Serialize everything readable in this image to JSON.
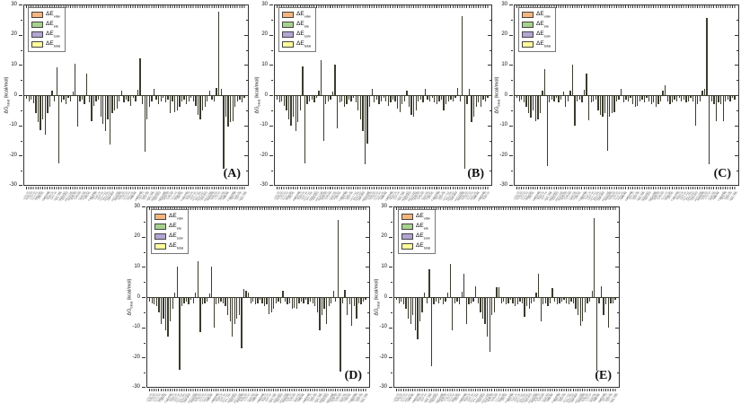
{
  "figure": {
    "background": "#ffffff",
    "bar_color": "#3b3b2e",
    "axis_color": "#333333",
    "description_visible_text_only": true
  },
  "legend": {
    "items": [
      {
        "pre": "ΔE",
        "sub": "vdw",
        "color": "#f5b57e"
      },
      {
        "pre": "ΔE",
        "sub": "ele",
        "color": "#a6d28e"
      },
      {
        "pre": "ΔE",
        "sub": "solv",
        "color": "#b3a5d3"
      },
      {
        "pre": "ΔE",
        "sub": "total",
        "color": "#ffff9c"
      }
    ]
  },
  "ylabel": {
    "pre": "ΔG",
    "sub": "bind",
    "post": " (kcal/mol)"
  },
  "xticks_note": "per-residue tick labels are present but illegible at source resolution",
  "xticks_sample": [
    "GLN-30",
    "ASP-32",
    "TYR-37",
    "LYS-40",
    "GLU-44",
    "ARG-65",
    "PHE-82",
    "HIS-41",
    "CYS-145",
    "MET-49",
    "LEU-27",
    "THR-26",
    "SER-46",
    "GLY-143",
    "VAL-186",
    "ASN-142",
    "TRP-207",
    "ILE-213",
    "PRO-168",
    "ALA-191"
  ],
  "chart_data": [
    {
      "type": "bar",
      "panel_label": "(A)",
      "ylabel": "ΔG_bind (kcal/mol)",
      "ylim": [
        -30,
        30
      ],
      "yticks": [
        30,
        20,
        10,
        0,
        -10,
        -20,
        -30
      ],
      "legend_entries": [
        "ΔE_vdw",
        "ΔE_ele",
        "ΔE_solv",
        "ΔE_total"
      ],
      "x": "protein residues (labels illegible)",
      "values": [
        -1.2,
        -2,
        -1.5,
        -2.6,
        -6,
        -9,
        -11.5,
        -8,
        -13,
        -6,
        -4,
        1.5,
        -2,
        9.2,
        -22.5,
        -2.5,
        -1.5,
        -3,
        -1,
        -2,
        1.2,
        10.5,
        -10.4,
        -2,
        -1.5,
        -3,
        7,
        -2.5,
        -8.7,
        -3.5,
        -2,
        -1.5,
        -7,
        -9.5,
        -12,
        -8,
        -16.3,
        -6,
        -5,
        -4.5,
        -2,
        1.5,
        -2.5,
        -1.5,
        -2,
        -3.5,
        -1,
        -2,
        1.8,
        12.2,
        -3,
        -18.6,
        -8,
        -4,
        -2,
        2,
        -1.5,
        -3,
        -2,
        -1,
        -2.5,
        -1.5,
        -6,
        -2,
        -5.5,
        -5,
        -4,
        -2,
        -1.5,
        -3,
        -2,
        -1,
        -2,
        -3.5,
        -6.5,
        -8,
        -5,
        -4,
        -2,
        1.5,
        -1.5,
        -2,
        2.5,
        27.5,
        2,
        -24.5,
        -7,
        -10.5,
        -9,
        -8.5,
        -4,
        -2,
        -1.5,
        -2.5,
        -1
      ]
    },
    {
      "type": "bar",
      "panel_label": "(B)",
      "ylabel": "ΔG_bind (kcal/mol)",
      "ylim": [
        -30,
        30
      ],
      "yticks": [
        30,
        20,
        10,
        0,
        -10,
        -20,
        -30
      ],
      "legend_entries": [
        "ΔE_vdw",
        "ΔE_ele",
        "ΔE_solv",
        "ΔE_total"
      ],
      "x": "protein residues (labels illegible)",
      "values": [
        -1.5,
        -2.5,
        -2,
        -3.5,
        -5,
        -8,
        -10,
        -7,
        -12,
        -9,
        -5,
        9.5,
        -22.5,
        -3,
        -2,
        -1.5,
        -2.5,
        -1,
        1.5,
        11.5,
        -15,
        -3,
        -2,
        -1.5,
        1.2,
        10,
        -11,
        -2.5,
        -2,
        -4,
        -3,
        -1.5,
        -2,
        -1,
        -2.5,
        -5,
        -8,
        -12,
        -23,
        -16,
        -4,
        2,
        -2.5,
        -1.5,
        -3,
        -2,
        -1,
        -2,
        -3.5,
        -2.5,
        -1.5,
        -2,
        -4.5,
        -5.5,
        -3,
        -2,
        1.5,
        -4,
        -6.5,
        -7,
        -5,
        -2,
        -1.5,
        -2.5,
        2,
        -1.5,
        -2,
        -1,
        -2.5,
        -3,
        -2,
        -1.5,
        -5,
        -3,
        -2,
        -1.5,
        -2,
        -1,
        2.5,
        -2,
        26,
        -24.3,
        -3,
        2,
        -9,
        -7,
        -4,
        -2.5,
        -4,
        -1.5,
        -2,
        -1
      ]
    },
    {
      "type": "bar",
      "panel_label": "(C)",
      "ylabel": "ΔG_bind (kcal/mol)",
      "ylim": [
        -30,
        30
      ],
      "yticks": [
        30,
        20,
        10,
        0,
        -10,
        -20,
        -30
      ],
      "legend_entries": [
        "ΔE_vdw",
        "ΔE_ele",
        "ΔE_solv",
        "ΔE_total"
      ],
      "x": "protein residues (labels illegible)",
      "values": [
        -1,
        -2,
        -1.5,
        -2.5,
        -4,
        -6,
        -7.5,
        -5,
        -8.5,
        -8,
        -6,
        1.5,
        8.5,
        -23.5,
        -2.5,
        -1.5,
        -2,
        -1,
        -2.5,
        -1.5,
        1.2,
        -4,
        -2,
        1.5,
        10,
        -10,
        -2,
        -1.5,
        -2.5,
        1.8,
        7.2,
        -8.2,
        -2.5,
        -2,
        -1.5,
        -5,
        -6.5,
        -7,
        -6,
        -18.5,
        -7,
        -6,
        -5.5,
        -2,
        -1.5,
        2,
        -2.5,
        -1.5,
        -2,
        -1,
        -3,
        -4,
        -3.5,
        -2,
        -1.5,
        -2.5,
        -1,
        -2,
        -3,
        -2.5,
        -4,
        -3,
        -2,
        1.5,
        3.2,
        -2,
        -3,
        -2.5,
        -1.5,
        -2,
        -1,
        -2,
        -1.5,
        -2.5,
        -2,
        -1,
        -2,
        -10,
        -3,
        -2,
        1.5,
        2,
        25.5,
        -23,
        -2,
        -3,
        -8.5,
        -2.5,
        -3,
        -8.7,
        -2,
        -1.5,
        -2,
        -1,
        -1.5
      ]
    },
    {
      "type": "bar",
      "panel_label": "(D)",
      "ylabel": "ΔG_bind (kcal/mol)",
      "ylim": [
        -30,
        30
      ],
      "yticks": [
        30,
        20,
        10,
        0,
        -10,
        -20,
        -30
      ],
      "legend_entries": [
        "ΔE_vdw",
        "ΔE_ele",
        "ΔE_solv",
        "ΔE_total"
      ],
      "x": "protein residues (labels illegible)",
      "values": [
        -1.5,
        -2,
        -2.5,
        -3,
        -5,
        -9,
        -7,
        -11,
        -13,
        -8,
        -4,
        1.5,
        10,
        -24,
        -3,
        -2,
        -1.5,
        -2.5,
        -1,
        -2,
        1.5,
        12,
        -11.5,
        -2.5,
        -2,
        -1.5,
        1.2,
        10,
        -10,
        -2.5,
        -2,
        -1.5,
        -2,
        -3,
        -6,
        -8,
        -13,
        -9,
        -7,
        -6,
        -17,
        2.8,
        2,
        1.5,
        -2,
        -1.5,
        -2.5,
        -2,
        -1,
        -2,
        -3,
        -2.5,
        -5.5,
        -5,
        -4,
        -2,
        -1.5,
        -2,
        2,
        -1.5,
        -2.5,
        -2,
        -4,
        -3.5,
        -4,
        -2,
        -1.5,
        -2,
        -1,
        -2.5,
        -1.5,
        -2,
        -3,
        -5,
        -11,
        -6,
        -4,
        -9,
        -3,
        -2,
        2,
        -1.5,
        25.5,
        -24.6,
        -2,
        2.5,
        -6,
        -2.5,
        -9.5,
        -3,
        -7,
        -2,
        -2.5,
        -1.5,
        -1
      ]
    },
    {
      "type": "bar",
      "panel_label": "(E)",
      "ylabel": "ΔG_bind (kcal/mol)",
      "ylim": [
        -30,
        30
      ],
      "yticks": [
        30,
        20,
        10,
        0,
        -10,
        -20,
        -30
      ],
      "legend_entries": [
        "ΔE_vdw",
        "ΔE_ele",
        "ΔE_solv",
        "ΔE_total"
      ],
      "x": "protein residues (labels illegible)",
      "values": [
        -1,
        -2,
        -1.5,
        -2.5,
        -4,
        -7,
        -9,
        -6,
        -11,
        -14,
        -8,
        -5,
        1.5,
        -2,
        9.3,
        -23,
        -2.5,
        -1.5,
        -2,
        -1,
        -2.5,
        -1.5,
        1.5,
        11,
        -11,
        -2,
        -1.5,
        -2.5,
        1.8,
        7.8,
        -9,
        -2.5,
        -2,
        -1.5,
        3.5,
        -2,
        -5,
        -7,
        -9,
        -13,
        -18,
        -6,
        -5,
        3.2,
        3.3,
        -2,
        -1.5,
        -2.5,
        -2,
        -1,
        -2,
        -3,
        -2.5,
        -1.5,
        -2,
        -6.5,
        -3,
        -4,
        -2,
        -1.5,
        1.5,
        7.8,
        -8,
        -2.5,
        -2,
        -3,
        -2,
        3,
        -1.5,
        -2.5,
        -2,
        -1.5,
        -1,
        -2,
        -2.5,
        -1.5,
        -2,
        -4,
        -6,
        -9.5,
        -8,
        -5,
        -2,
        -1.5,
        2,
        26,
        -24.5,
        -2,
        3.5,
        -6,
        -2.5,
        -10,
        -2,
        -2,
        -1
      ]
    }
  ]
}
